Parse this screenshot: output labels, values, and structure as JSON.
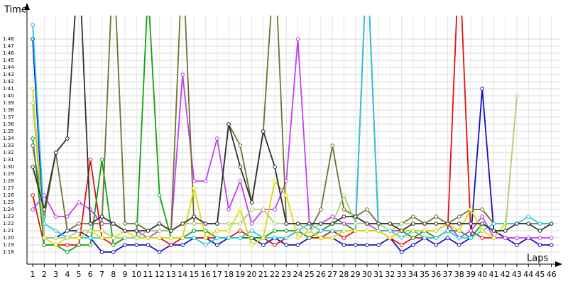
{
  "chart_data": {
    "type": "line",
    "y_label": "Time",
    "x_label": "Laps",
    "grid": true,
    "x": [
      1,
      2,
      3,
      4,
      5,
      6,
      7,
      8,
      9,
      10,
      11,
      12,
      13,
      14,
      15,
      16,
      17,
      18,
      19,
      20,
      21,
      22,
      23,
      24,
      25,
      26,
      27,
      28,
      29,
      30,
      31,
      32,
      33,
      34,
      35,
      36,
      37,
      38,
      39,
      40,
      41,
      42,
      43,
      44,
      45,
      46
    ],
    "xlim": [
      0.5,
      46.7
    ],
    "ylim": [
      76.3,
      111.3
    ],
    "xticks": [
      1,
      2,
      3,
      4,
      5,
      6,
      7,
      8,
      9,
      10,
      11,
      12,
      13,
      14,
      15,
      16,
      17,
      18,
      19,
      20,
      21,
      22,
      23,
      24,
      25,
      26,
      27,
      28,
      29,
      30,
      31,
      32,
      33,
      34,
      35,
      36,
      37,
      38,
      39,
      40,
      41,
      42,
      43,
      44,
      45,
      46
    ],
    "yticks": [
      {
        "value": 78,
        "label": "1:18"
      },
      {
        "value": 79,
        "label": "1:19"
      },
      {
        "value": 80,
        "label": "1:20"
      },
      {
        "value": 81,
        "label": "1:21"
      },
      {
        "value": 82,
        "label": "1:22"
      },
      {
        "value": 83,
        "label": "1:23"
      },
      {
        "value": 84,
        "label": "1:24"
      },
      {
        "value": 85,
        "label": "1:25"
      },
      {
        "value": 86,
        "label": "1:26"
      },
      {
        "value": 87,
        "label": "1:27"
      },
      {
        "value": 88,
        "label": "1:28"
      },
      {
        "value": 89,
        "label": "1:29"
      },
      {
        "value": 90,
        "label": "1:30"
      },
      {
        "value": 91,
        "label": "1:31"
      },
      {
        "value": 92,
        "label": "1:32"
      },
      {
        "value": 93,
        "label": "1:33"
      },
      {
        "value": 94,
        "label": "1:34"
      },
      {
        "value": 95,
        "label": "1:35"
      },
      {
        "value": 96,
        "label": "1:36"
      },
      {
        "value": 97,
        "label": "1:37"
      },
      {
        "value": 98,
        "label": "1:38"
      },
      {
        "value": 99,
        "label": "1:39"
      },
      {
        "value": 100,
        "label": "1:40"
      },
      {
        "value": 101,
        "label": "1:41"
      },
      {
        "value": 102,
        "label": "1:42"
      },
      {
        "value": 103,
        "label": "1:43"
      },
      {
        "value": 104,
        "label": "1:44"
      },
      {
        "value": 105,
        "label": "1:45"
      },
      {
        "value": 106,
        "label": "1:46"
      },
      {
        "value": 107,
        "label": "1:47"
      },
      {
        "value": 108,
        "label": "1:48"
      }
    ],
    "series": [
      {
        "color": "#1010c0",
        "values": [
          108,
          80,
          80,
          81,
          81,
          80,
          78,
          78,
          79,
          79,
          79,
          78,
          79,
          79,
          80,
          80,
          79,
          80,
          80,
          80,
          79,
          80,
          79,
          79,
          80,
          80,
          80,
          79,
          79,
          79,
          79,
          80,
          78,
          79,
          80,
          79,
          80,
          79,
          80,
          101,
          81,
          80,
          79,
          80,
          79,
          79
        ]
      },
      {
        "color": "#e01010",
        "values": [
          86,
          79,
          79,
          79,
          79,
          91,
          80,
          79,
          80,
          80,
          80,
          80,
          79,
          80,
          80,
          80,
          80,
          80,
          81,
          80,
          80,
          79,
          80,
          81,
          80,
          80,
          81,
          80,
          81,
          120,
          81,
          80,
          79,
          80,
          80,
          80,
          81,
          120,
          81,
          80,
          80,
          80,
          80,
          null,
          null,
          null
        ]
      },
      {
        "color": "#10a010",
        "values": [
          94,
          79,
          79,
          78,
          79,
          79,
          91,
          79,
          80,
          80,
          115,
          86,
          80,
          80,
          81,
          81,
          80,
          80,
          80,
          80,
          80,
          81,
          81,
          81,
          80,
          81,
          82,
          82,
          81,
          81,
          81,
          81,
          81,
          80,
          81,
          80,
          81,
          81,
          80,
          82,
          81,
          null,
          null,
          null,
          null,
          null
        ]
      },
      {
        "color": "#c040f0",
        "values": [
          84,
          86,
          83,
          83,
          85,
          84,
          82,
          82,
          81,
          81,
          80,
          81,
          81,
          103,
          88,
          88,
          94,
          84,
          88,
          82,
          84,
          84,
          88,
          108,
          82,
          82,
          83,
          82,
          82,
          82,
          81,
          81,
          81,
          81,
          81,
          81,
          82,
          80,
          81,
          83,
          80,
          80,
          80,
          80,
          80,
          80
        ]
      },
      {
        "color": "#707030",
        "values": [
          93,
          83,
          92,
          81,
          82,
          82,
          82,
          120,
          82,
          82,
          81,
          81,
          81,
          120,
          82,
          82,
          82,
          96,
          93,
          85,
          95,
          120,
          82,
          82,
          81,
          84,
          93,
          84,
          83,
          84,
          82,
          82,
          82,
          83,
          82,
          83,
          82,
          83,
          84,
          84,
          82,
          82,
          82,
          82,
          82,
          82
        ]
      },
      {
        "color": "#20c8e0",
        "values": [
          110,
          82,
          81,
          80,
          80,
          80,
          80,
          80,
          80,
          80,
          80,
          80,
          80,
          80,
          80,
          79,
          80,
          80,
          80,
          81,
          80,
          80,
          80,
          81,
          82,
          81,
          81,
          81,
          81,
          120,
          81,
          81,
          80,
          81,
          80,
          80,
          81,
          80,
          80,
          81,
          82,
          82,
          82,
          83,
          82,
          82
        ]
      },
      {
        "color": "#e0d800",
        "values": [
          101,
          80,
          79,
          80,
          80,
          81,
          80,
          80,
          81,
          80,
          80,
          80,
          80,
          80,
          87,
          80,
          81,
          81,
          84,
          79,
          80,
          88,
          86,
          80,
          81,
          80,
          80,
          81,
          81,
          81,
          81,
          80,
          81,
          81,
          81,
          81,
          82,
          81,
          84,
          81,
          80,
          82,
          null,
          null,
          null,
          null
        ]
      },
      {
        "color": "#a8d070",
        "values": [
          99,
          80,
          80,
          80,
          81,
          81,
          81,
          80,
          80,
          80,
          81,
          81,
          81,
          82,
          82,
          82,
          82,
          82,
          82,
          84,
          84,
          82,
          82,
          82,
          81,
          82,
          82,
          86,
          82,
          82,
          82,
          81,
          82,
          82,
          82,
          82,
          82,
          82,
          82,
          82,
          81,
          81,
          100,
          null,
          null,
          null
        ]
      },
      {
        "color": "#303030",
        "values": [
          90,
          84,
          92,
          94,
          120,
          82,
          83,
          82,
          81,
          81,
          81,
          82,
          81,
          82,
          83,
          82,
          82,
          96,
          90,
          85,
          95,
          90,
          82,
          82,
          82,
          82,
          82,
          83,
          83,
          82,
          82,
          82,
          81,
          82,
          82,
          82,
          82,
          82,
          82,
          82,
          81,
          81,
          82,
          82,
          81,
          82
        ]
      }
    ]
  }
}
